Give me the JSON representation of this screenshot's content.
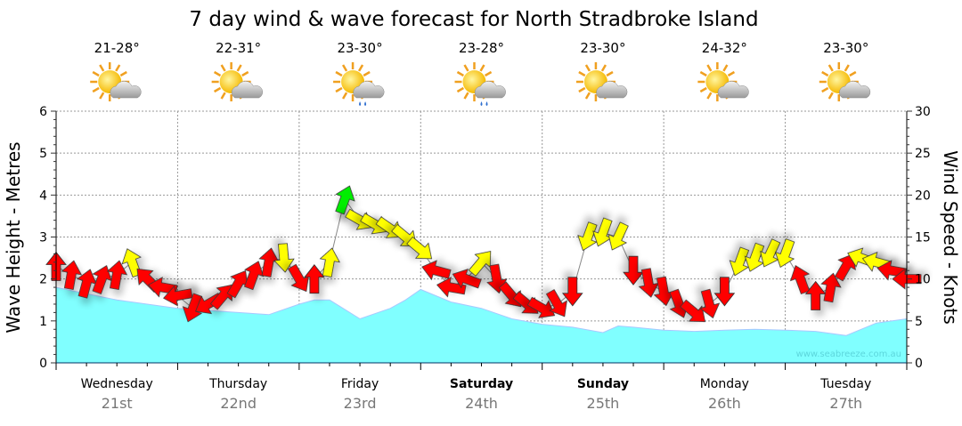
{
  "chart_data": {
    "type": "area",
    "title": "7 day wind & wave forecast for North Stradbroke Island",
    "ylabel": "Wave Height - Metres",
    "y2label": "Wind Speed - Knots",
    "ylim": [
      0,
      6
    ],
    "y2lim": [
      0,
      30
    ],
    "yticks": [
      "0",
      "1",
      "2",
      "3",
      "4",
      "5",
      "6"
    ],
    "y2ticks": [
      "0",
      "5",
      "10",
      "15",
      "20",
      "25",
      "30"
    ],
    "grid": true,
    "watermark": "www.seabreeze.com.au",
    "days": [
      {
        "name": "Wednesday",
        "date": "21st",
        "temp": "21-28°",
        "icon": "sun-cloud-icon",
        "bold": false
      },
      {
        "name": "Thursday",
        "date": "22nd",
        "temp": "22-31°",
        "icon": "sun-cloud-icon",
        "bold": false
      },
      {
        "name": "Friday",
        "date": "23rd",
        "temp": "23-30°",
        "icon": "sun-cloud-rain-icon",
        "bold": false
      },
      {
        "name": "Saturday",
        "date": "24th",
        "temp": "23-28°",
        "icon": "sun-cloud-rain-icon",
        "bold": true
      },
      {
        "name": "Sunday",
        "date": "25th",
        "temp": "23-30°",
        "icon": "sun-cloud-icon",
        "bold": true
      },
      {
        "name": "Monday",
        "date": "26th",
        "temp": "24-32°",
        "icon": "sun-cloud-icon",
        "bold": false
      },
      {
        "name": "Tuesday",
        "date": "27th",
        "temp": "23-30°",
        "icon": "sun-cloud-icon",
        "bold": false
      }
    ],
    "wave": {
      "name": "Wave height (m)",
      "color": "#80ffff",
      "hours": [
        0,
        6,
        12,
        18,
        24,
        30,
        36,
        42,
        48,
        51,
        54,
        60,
        66,
        69,
        72,
        78,
        84,
        90,
        96,
        102,
        108,
        111,
        114,
        120,
        126,
        132,
        138,
        144,
        150,
        156,
        162,
        168
      ],
      "values": [
        1.8,
        1.65,
        1.5,
        1.4,
        1.3,
        1.25,
        1.2,
        1.15,
        1.4,
        1.5,
        1.5,
        1.05,
        1.3,
        1.5,
        1.75,
        1.45,
        1.3,
        1.05,
        0.92,
        0.85,
        0.72,
        0.88,
        0.85,
        0.78,
        0.75,
        0.78,
        0.8,
        0.78,
        0.75,
        0.65,
        0.95,
        1.05
      ]
    },
    "wind": {
      "name": "Wind (knots)",
      "colors": {
        "red": "#ff0000",
        "yellow": "#ffff00",
        "green": "#00ee00"
      },
      "points": [
        {
          "h": 0,
          "kt": 11.5,
          "dir": 0,
          "c": "red"
        },
        {
          "h": 3,
          "kt": 10.5,
          "dir": 10,
          "c": "red"
        },
        {
          "h": 6,
          "kt": 9.5,
          "dir": 15,
          "c": "red"
        },
        {
          "h": 9,
          "kt": 10,
          "dir": 20,
          "c": "red"
        },
        {
          "h": 12,
          "kt": 10.5,
          "dir": 10,
          "c": "red"
        },
        {
          "h": 15,
          "kt": 12,
          "dir": -20,
          "c": "yellow"
        },
        {
          "h": 18,
          "kt": 10,
          "dir": -45,
          "c": "red"
        },
        {
          "h": 21,
          "kt": 9,
          "dir": -80,
          "c": "red"
        },
        {
          "h": 24,
          "kt": 8,
          "dir": -100,
          "c": "red"
        },
        {
          "h": 27,
          "kt": 6.5,
          "dir": -160,
          "c": "red"
        },
        {
          "h": 30,
          "kt": 7,
          "dir": -120,
          "c": "red"
        },
        {
          "h": 33,
          "kt": 8,
          "dir": 40,
          "c": "red"
        },
        {
          "h": 36,
          "kt": 9.5,
          "dir": 30,
          "c": "red"
        },
        {
          "h": 39,
          "kt": 10.5,
          "dir": 20,
          "c": "red"
        },
        {
          "h": 42,
          "kt": 12,
          "dir": 10,
          "c": "red"
        },
        {
          "h": 45,
          "kt": 12.5,
          "dir": 175,
          "c": "yellow"
        },
        {
          "h": 48,
          "kt": 10,
          "dir": 150,
          "c": "red"
        },
        {
          "h": 51,
          "kt": 10,
          "dir": 0,
          "c": "red"
        },
        {
          "h": 54,
          "kt": 12,
          "dir": 10,
          "c": "yellow"
        },
        {
          "h": 57,
          "kt": 19.5,
          "dir": 20,
          "c": "green"
        },
        {
          "h": 60,
          "kt": 17,
          "dir": 120,
          "c": "yellow"
        },
        {
          "h": 63,
          "kt": 16.5,
          "dir": 120,
          "c": "yellow"
        },
        {
          "h": 66,
          "kt": 16,
          "dir": 125,
          "c": "yellow"
        },
        {
          "h": 69,
          "kt": 15,
          "dir": 130,
          "c": "yellow"
        },
        {
          "h": 72,
          "kt": 13.5,
          "dir": 130,
          "c": "yellow"
        },
        {
          "h": 75,
          "kt": 11,
          "dir": -75,
          "c": "red"
        },
        {
          "h": 78,
          "kt": 9,
          "dir": -80,
          "c": "red"
        },
        {
          "h": 81,
          "kt": 10,
          "dir": -70,
          "c": "red"
        },
        {
          "h": 84,
          "kt": 12,
          "dir": 40,
          "c": "yellow"
        },
        {
          "h": 87,
          "kt": 10,
          "dir": 170,
          "c": "red"
        },
        {
          "h": 90,
          "kt": 8,
          "dir": 140,
          "c": "red"
        },
        {
          "h": 93,
          "kt": 7,
          "dir": 130,
          "c": "red"
        },
        {
          "h": 96,
          "kt": 6.5,
          "dir": 120,
          "c": "red"
        },
        {
          "h": 99,
          "kt": 7,
          "dir": 150,
          "c": "red"
        },
        {
          "h": 102,
          "kt": 8.5,
          "dir": 180,
          "c": "red"
        },
        {
          "h": 105,
          "kt": 15,
          "dir": 200,
          "c": "yellow"
        },
        {
          "h": 108,
          "kt": 15.5,
          "dir": 200,
          "c": "yellow"
        },
        {
          "h": 111,
          "kt": 15,
          "dir": 205,
          "c": "yellow"
        },
        {
          "h": 114,
          "kt": 11,
          "dir": 180,
          "c": "red"
        },
        {
          "h": 117,
          "kt": 9.5,
          "dir": 170,
          "c": "red"
        },
        {
          "h": 120,
          "kt": 8.5,
          "dir": 170,
          "c": "red"
        },
        {
          "h": 123,
          "kt": 7,
          "dir": 160,
          "c": "red"
        },
        {
          "h": 126,
          "kt": 6,
          "dir": 130,
          "c": "red"
        },
        {
          "h": 129,
          "kt": 7,
          "dir": 165,
          "c": "red"
        },
        {
          "h": 132,
          "kt": 8.5,
          "dir": 180,
          "c": "red"
        },
        {
          "h": 135,
          "kt": 12,
          "dir": 200,
          "c": "yellow"
        },
        {
          "h": 138,
          "kt": 12.5,
          "dir": 200,
          "c": "yellow"
        },
        {
          "h": 141,
          "kt": 13,
          "dir": 205,
          "c": "yellow"
        },
        {
          "h": 144,
          "kt": 13,
          "dir": 200,
          "c": "yellow"
        },
        {
          "h": 147,
          "kt": 10,
          "dir": -20,
          "c": "red"
        },
        {
          "h": 150,
          "kt": 8,
          "dir": 0,
          "c": "red"
        },
        {
          "h": 153,
          "kt": 9,
          "dir": 10,
          "c": "red"
        },
        {
          "h": 156,
          "kt": 11.5,
          "dir": 30,
          "c": "red"
        },
        {
          "h": 159,
          "kt": 12.5,
          "dir": -70,
          "c": "yellow"
        },
        {
          "h": 162,
          "kt": 12,
          "dir": -75,
          "c": "yellow"
        },
        {
          "h": 165,
          "kt": 11,
          "dir": -80,
          "c": "red"
        },
        {
          "h": 168,
          "kt": 10,
          "dir": -90,
          "c": "red"
        }
      ]
    }
  }
}
